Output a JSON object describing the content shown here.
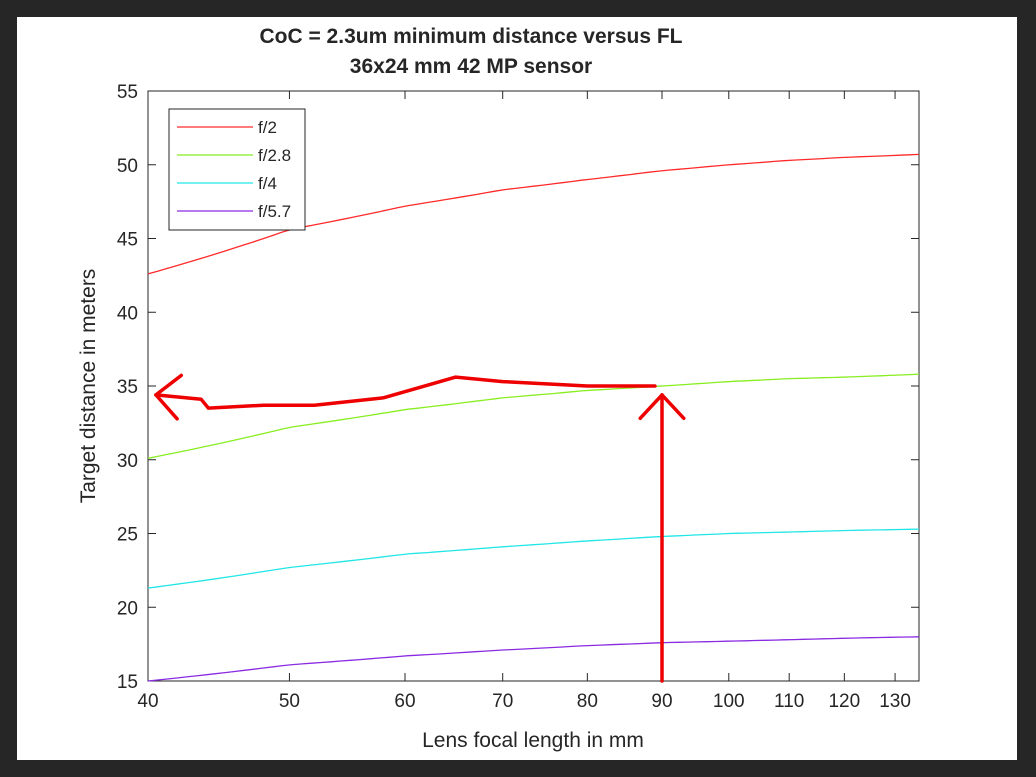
{
  "chart_data": {
    "type": "line",
    "title": "CoC = 2.3um minimum distance versus FL",
    "subtitle": "36x24 mm 42 MP sensor",
    "xlabel": "Lens focal length in mm",
    "ylabel": "Target distance in meters",
    "x_scale": "log",
    "xlim": [
      40,
      135
    ],
    "ylim": [
      15,
      55
    ],
    "x_ticks": [
      40,
      50,
      60,
      70,
      80,
      90,
      100,
      110,
      120,
      130
    ],
    "y_ticks": [
      15,
      20,
      25,
      30,
      35,
      40,
      45,
      50,
      55
    ],
    "grid": false,
    "legend_position": "top-left",
    "series": [
      {
        "name": "f/2",
        "color": "#ff2a2a",
        "x": [
          40,
          50,
          60,
          70,
          80,
          90,
          100,
          110,
          120,
          135
        ],
        "values": [
          42.6,
          45.6,
          47.2,
          48.3,
          49.0,
          49.6,
          50.0,
          50.3,
          50.5,
          50.7
        ]
      },
      {
        "name": "f/2.8",
        "color": "#88ee22",
        "x": [
          40,
          50,
          60,
          70,
          80,
          90,
          100,
          110,
          120,
          135
        ],
        "values": [
          30.1,
          32.2,
          33.4,
          34.2,
          34.7,
          35.0,
          35.3,
          35.5,
          35.6,
          35.8
        ]
      },
      {
        "name": "f/4",
        "color": "#22e6e6",
        "x": [
          40,
          50,
          60,
          70,
          80,
          90,
          100,
          110,
          120,
          135
        ],
        "values": [
          21.3,
          22.7,
          23.6,
          24.1,
          24.5,
          24.8,
          25.0,
          25.1,
          25.2,
          25.3
        ]
      },
      {
        "name": "f/5.7",
        "color": "#8a2be2",
        "x": [
          40,
          50,
          60,
          70,
          80,
          90,
          100,
          110,
          120,
          135
        ],
        "values": [
          15.0,
          16.1,
          16.7,
          17.1,
          17.4,
          17.6,
          17.7,
          17.8,
          17.9,
          18.0
        ]
      }
    ],
    "annotations": [
      {
        "type": "hand-drawn-arrow",
        "color": "#ee0000",
        "x": [
          90,
          90
        ],
        "y": [
          15,
          34.4
        ]
      },
      {
        "type": "hand-drawn-arrow",
        "color": "#ee0000",
        "x": [
          89,
          80,
          70,
          65,
          58,
          52,
          48,
          44,
          43.5,
          40.5
        ],
        "y": [
          35,
          35,
          35.3,
          35.6,
          34.2,
          33.7,
          33.7,
          33.5,
          34.1,
          34.4
        ]
      }
    ]
  }
}
